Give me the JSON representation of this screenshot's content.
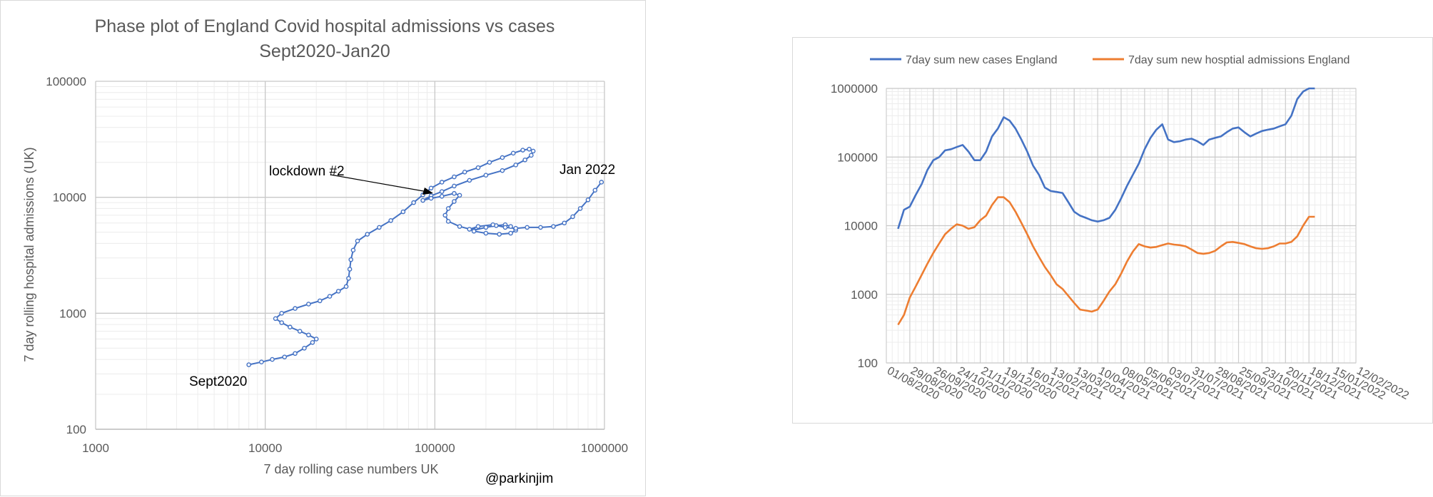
{
  "left_chart": {
    "title_line1": "Phase plot of England Covid hospital admissions vs cases",
    "title_line2": "Sept2020-Jan20",
    "xlabel": "7 day rolling case numbers UK",
    "ylabel": "7 day rolling hospital admissions (UK)",
    "x_ticks": [
      "1000",
      "10000",
      "100000",
      "1000000"
    ],
    "y_ticks": [
      "100",
      "1000",
      "10000",
      "100000"
    ],
    "annotations": {
      "start": "Sept2020",
      "end": "Jan 2022",
      "lockdown": "lockdown #2",
      "credit": "@parkinjim"
    }
  },
  "right_chart": {
    "legend": [
      "7day sum new cases England",
      "7day sum new hosptial admissions England"
    ],
    "y_ticks": [
      "100",
      "1000",
      "10000",
      "100000",
      "1000000"
    ],
    "x_ticks": [
      "01/08/2020",
      "29/08/2020",
      "26/09/2020",
      "24/10/2020",
      "21/11/2020",
      "19/12/2020",
      "16/01/2021",
      "13/02/2021",
      "13/03/2021",
      "10/04/2021",
      "08/05/2021",
      "05/06/2021",
      "03/07/2021",
      "31/07/2021",
      "28/08/2021",
      "25/09/2021",
      "23/10/2021",
      "20/11/2021",
      "18/12/2021",
      "15/01/2022",
      "12/02/2022"
    ]
  },
  "chart_data": [
    {
      "type": "scatter",
      "title": "Phase plot of England Covid hospital admissions vs cases Sept2020-Jan20",
      "xlabel": "7 day rolling case numbers UK",
      "ylabel": "7 day rolling hospital admissions (UK)",
      "xscale": "log",
      "yscale": "log",
      "xlim": [
        1000,
        1000000
      ],
      "ylim": [
        100,
        100000
      ],
      "grid": true,
      "series": [
        {
          "color": "#4472c4",
          "points": [
            [
              8000,
              360
            ],
            [
              9500,
              380
            ],
            [
              11000,
              400
            ],
            [
              13000,
              420
            ],
            [
              15000,
              450
            ],
            [
              17000,
              500
            ],
            [
              19000,
              560
            ],
            [
              20000,
              600
            ],
            [
              18000,
              650
            ],
            [
              16000,
              700
            ],
            [
              14000,
              760
            ],
            [
              12500,
              830
            ],
            [
              11500,
              900
            ],
            [
              12500,
              1000
            ],
            [
              15000,
              1100
            ],
            [
              18000,
              1200
            ],
            [
              21000,
              1280
            ],
            [
              24000,
              1400
            ],
            [
              27000,
              1550
            ],
            [
              30000,
              1700
            ],
            [
              31000,
              2000
            ],
            [
              31500,
              2400
            ],
            [
              32000,
              2900
            ],
            [
              33000,
              3500
            ],
            [
              35000,
              4200
            ],
            [
              40000,
              4800
            ],
            [
              47000,
              5500
            ],
            [
              55000,
              6300
            ],
            [
              65000,
              7500
            ],
            [
              75000,
              9000
            ],
            [
              85000,
              10500
            ],
            [
              95000,
              12000
            ],
            [
              110000,
              13500
            ],
            [
              130000,
              15000
            ],
            [
              150000,
              16500
            ],
            [
              180000,
              18000
            ],
            [
              210000,
              20000
            ],
            [
              250000,
              22000
            ],
            [
              290000,
              24000
            ],
            [
              330000,
              25500
            ],
            [
              360000,
              26000
            ],
            [
              380000,
              25000
            ],
            [
              370000,
              23000
            ],
            [
              340000,
              21000
            ],
            [
              300000,
              19000
            ],
            [
              250000,
              17000
            ],
            [
              200000,
              15500
            ],
            [
              160000,
              14000
            ],
            [
              130000,
              12500
            ],
            [
              110000,
              11200
            ],
            [
              95000,
              10300
            ],
            [
              85000,
              9400
            ],
            [
              95000,
              9800
            ],
            [
              110000,
              10200
            ],
            [
              130000,
              10800
            ],
            [
              140000,
              10400
            ],
            [
              130000,
              9200
            ],
            [
              120000,
              8000
            ],
            [
              115000,
              7000
            ],
            [
              120000,
              6200
            ],
            [
              140000,
              5600
            ],
            [
              170000,
              5200
            ],
            [
              200000,
              5500
            ],
            [
              230000,
              5700
            ],
            [
              260000,
              5800
            ],
            [
              280000,
              5600
            ],
            [
              300000,
              5200
            ],
            [
              280000,
              4900
            ],
            [
              240000,
              4800
            ],
            [
              200000,
              4900
            ],
            [
              170000,
              5100
            ],
            [
              160000,
              5300
            ],
            [
              180000,
              5600
            ],
            [
              220000,
              5800
            ],
            [
              260000,
              5500
            ],
            [
              300000,
              5400
            ],
            [
              350000,
              5500
            ],
            [
              420000,
              5500
            ],
            [
              500000,
              5600
            ],
            [
              580000,
              6000
            ],
            [
              650000,
              6800
            ],
            [
              720000,
              8000
            ],
            [
              800000,
              9500
            ],
            [
              880000,
              11500
            ],
            [
              960000,
              13500
            ]
          ]
        }
      ]
    },
    {
      "type": "line",
      "xlabel": "",
      "ylabel": "",
      "yscale": "log",
      "ylim": [
        100,
        1000000
      ],
      "xlim": [
        "01/08/2020",
        "12/02/2022"
      ],
      "x_tick_labels": [
        "01/08/2020",
        "29/08/2020",
        "26/09/2020",
        "24/10/2020",
        "21/11/2020",
        "19/12/2020",
        "16/01/2021",
        "13/02/2021",
        "13/03/2021",
        "10/04/2021",
        "08/05/2021",
        "05/06/2021",
        "03/07/2021",
        "31/07/2021",
        "28/08/2021",
        "25/09/2021",
        "23/10/2021",
        "20/11/2021",
        "18/12/2021",
        "15/01/2022",
        "12/02/2022"
      ],
      "legend_position": "top",
      "grid": true,
      "series": [
        {
          "name": "7day sum new cases England",
          "color": "#4472c4",
          "x": [
            "15/08/2020",
            "22/08/2020",
            "29/08/2020",
            "05/09/2020",
            "12/09/2020",
            "19/09/2020",
            "26/09/2020",
            "03/10/2020",
            "10/10/2020",
            "17/10/2020",
            "24/10/2020",
            "31/10/2020",
            "07/11/2020",
            "14/11/2020",
            "21/11/2020",
            "28/11/2020",
            "05/12/2020",
            "12/12/2020",
            "19/12/2020",
            "26/12/2020",
            "02/01/2021",
            "09/01/2021",
            "16/01/2021",
            "23/01/2021",
            "30/01/2021",
            "06/02/2021",
            "13/02/2021",
            "20/02/2021",
            "27/02/2021",
            "06/03/2021",
            "13/03/2021",
            "20/03/2021",
            "27/03/2021",
            "03/04/2021",
            "10/04/2021",
            "17/04/2021",
            "24/04/2021",
            "01/05/2021",
            "08/05/2021",
            "15/05/2021",
            "22/05/2021",
            "29/05/2021",
            "05/06/2021",
            "12/06/2021",
            "19/06/2021",
            "26/06/2021",
            "03/07/2021",
            "10/07/2021",
            "17/07/2021",
            "24/07/2021",
            "31/07/2021",
            "07/08/2021",
            "14/08/2021",
            "21/08/2021",
            "28/08/2021",
            "04/09/2021",
            "11/09/2021",
            "18/09/2021",
            "25/09/2021",
            "02/10/2021",
            "09/10/2021",
            "16/10/2021",
            "23/10/2021",
            "30/10/2021",
            "06/11/2021",
            "13/11/2021",
            "20/11/2021",
            "27/11/2021",
            "04/12/2021",
            "11/12/2021",
            "18/12/2021",
            "25/12/2021"
          ],
          "values": [
            9000,
            17000,
            19000,
            28000,
            40000,
            65000,
            90000,
            100000,
            125000,
            130000,
            140000,
            150000,
            120000,
            90000,
            90000,
            120000,
            200000,
            260000,
            380000,
            340000,
            260000,
            180000,
            120000,
            75000,
            55000,
            36000,
            32000,
            31000,
            30000,
            22000,
            16000,
            14000,
            13000,
            12000,
            11500,
            12000,
            13000,
            17000,
            25000,
            38000,
            55000,
            80000,
            130000,
            190000,
            250000,
            300000,
            180000,
            165000,
            170000,
            180000,
            185000,
            170000,
            150000,
            180000,
            190000,
            200000,
            230000,
            260000,
            270000,
            230000,
            200000,
            220000,
            240000,
            250000,
            260000,
            280000,
            300000,
            400000,
            700000,
            900000,
            1000000,
            1000000
          ]
        },
        {
          "name": "7day sum new hosptial admissions England",
          "color": "#ed7d31",
          "x": [
            "15/08/2020",
            "22/08/2020",
            "29/08/2020",
            "05/09/2020",
            "12/09/2020",
            "19/09/2020",
            "26/09/2020",
            "03/10/2020",
            "10/10/2020",
            "17/10/2020",
            "24/10/2020",
            "31/10/2020",
            "07/11/2020",
            "14/11/2020",
            "21/11/2020",
            "28/11/2020",
            "05/12/2020",
            "12/12/2020",
            "19/12/2020",
            "26/12/2020",
            "02/01/2021",
            "09/01/2021",
            "16/01/2021",
            "23/01/2021",
            "30/01/2021",
            "06/02/2021",
            "13/02/2021",
            "20/02/2021",
            "27/02/2021",
            "06/03/2021",
            "13/03/2021",
            "20/03/2021",
            "27/03/2021",
            "03/04/2021",
            "10/04/2021",
            "17/04/2021",
            "24/04/2021",
            "01/05/2021",
            "08/05/2021",
            "15/05/2021",
            "22/05/2021",
            "29/05/2021",
            "05/06/2021",
            "12/06/2021",
            "19/06/2021",
            "26/06/2021",
            "03/07/2021",
            "10/07/2021",
            "17/07/2021",
            "24/07/2021",
            "31/07/2021",
            "07/08/2021",
            "14/08/2021",
            "21/08/2021",
            "28/08/2021",
            "04/09/2021",
            "11/09/2021",
            "18/09/2021",
            "25/09/2021",
            "02/10/2021",
            "09/10/2021",
            "16/10/2021",
            "23/10/2021",
            "30/10/2021",
            "06/11/2021",
            "13/11/2021",
            "20/11/2021",
            "27/11/2021",
            "04/12/2021",
            "11/12/2021",
            "18/12/2021",
            "25/12/2021"
          ],
          "values": [
            360,
            500,
            900,
            1300,
            1900,
            2800,
            4000,
            5500,
            7500,
            9000,
            10500,
            10000,
            9000,
            9500,
            12000,
            14000,
            20000,
            26000,
            26000,
            22000,
            16000,
            11000,
            7500,
            5000,
            3500,
            2500,
            1900,
            1400,
            1200,
            950,
            750,
            600,
            580,
            560,
            600,
            800,
            1100,
            1400,
            2000,
            3000,
            4200,
            5400,
            5000,
            4800,
            4900,
            5200,
            5500,
            5300,
            5200,
            5000,
            4500,
            4000,
            3900,
            4000,
            4300,
            5000,
            5700,
            5800,
            5600,
            5400,
            5000,
            4700,
            4600,
            4700,
            5000,
            5500,
            5500,
            5800,
            7000,
            10000,
            13500,
            13500
          ]
        }
      ]
    }
  ]
}
